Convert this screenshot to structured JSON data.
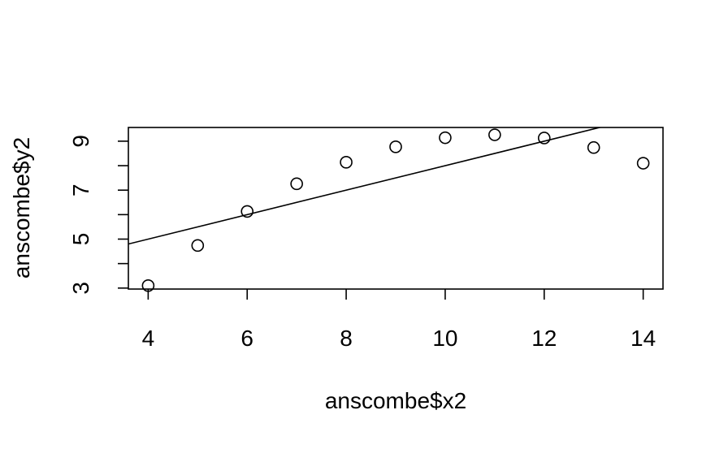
{
  "chart_data": {
    "type": "scatter",
    "title": "",
    "xlabel": "anscombe$x2",
    "ylabel": "anscombe$y2",
    "xlim": [
      3.6,
      14.4
    ],
    "ylim": [
      2.96,
      9.56
    ],
    "x_ticks": [
      4,
      6,
      8,
      10,
      12,
      14
    ],
    "x_tick_labels": [
      "4",
      "6",
      "8",
      "10",
      "12",
      "14"
    ],
    "y_ticks": [
      3,
      4,
      5,
      6,
      7,
      8,
      9
    ],
    "y_tick_labels": [
      "3",
      "",
      "5",
      "",
      "7",
      "",
      "9"
    ],
    "grid": false,
    "point_style": "open-circle",
    "series": [
      {
        "x": [
          10,
          8,
          13,
          9,
          11,
          14,
          6,
          4,
          12,
          7,
          5
        ],
        "y": [
          9.14,
          8.14,
          8.74,
          8.77,
          9.26,
          8.1,
          6.13,
          3.1,
          9.13,
          7.26,
          4.74
        ]
      }
    ],
    "regression_line": {
      "intercept": 3.0,
      "slope": 0.5
    }
  }
}
